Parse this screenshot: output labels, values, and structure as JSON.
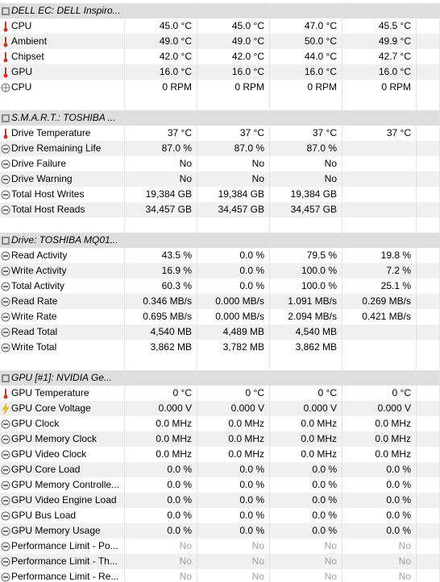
{
  "sections": [
    {
      "title": "DELL EC: DELL Inspiro...",
      "rows": [
        {
          "icon": "thermo",
          "label": "CPU",
          "values": [
            "45.0 °C",
            "45.0 °C",
            "47.0 °C",
            "45.5 °C"
          ]
        },
        {
          "icon": "thermo",
          "label": "Ambient",
          "values": [
            "49.0 °C",
            "49.0 °C",
            "50.0 °C",
            "49.9 °C"
          ]
        },
        {
          "icon": "thermo",
          "label": "Chipset",
          "values": [
            "42.0 °C",
            "42.0 °C",
            "44.0 °C",
            "42.7 °C"
          ]
        },
        {
          "icon": "thermo",
          "label": "GPU",
          "values": [
            "16.0 °C",
            "16.0 °C",
            "16.0 °C",
            "16.0 °C"
          ]
        },
        {
          "icon": "fan",
          "label": "CPU",
          "values": [
            "0 RPM",
            "0 RPM",
            "0 RPM",
            "0 RPM"
          ]
        }
      ]
    },
    {
      "title": "S.M.A.R.T.: TOSHIBA ...",
      "rows": [
        {
          "icon": "thermo",
          "label": "Drive Temperature",
          "values": [
            "37 °C",
            "37 °C",
            "37 °C",
            "37 °C"
          ]
        },
        {
          "icon": "circle",
          "label": "Drive Remaining Life",
          "values": [
            "87.0 %",
            "87.0 %",
            "87.0 %"
          ]
        },
        {
          "icon": "circle",
          "label": "Drive Failure",
          "values": [
            "No",
            "No",
            "No"
          ]
        },
        {
          "icon": "circle",
          "label": "Drive Warning",
          "values": [
            "No",
            "No",
            "No"
          ]
        },
        {
          "icon": "circle",
          "label": "Total Host Writes",
          "values": [
            "19,384 GB",
            "19,384 GB",
            "19,384 GB"
          ]
        },
        {
          "icon": "circle",
          "label": "Total Host Reads",
          "values": [
            "34,457 GB",
            "34,457 GB",
            "34,457 GB"
          ]
        }
      ]
    },
    {
      "title": "Drive: TOSHIBA MQ01...",
      "rows": [
        {
          "icon": "circle",
          "label": "Read Activity",
          "values": [
            "43.5 %",
            "0.0 %",
            "79.5 %",
            "19.8 %"
          ]
        },
        {
          "icon": "circle",
          "label": "Write Activity",
          "values": [
            "16.9 %",
            "0.0 %",
            "100.0 %",
            "7.2 %"
          ]
        },
        {
          "icon": "circle",
          "label": "Total Activity",
          "values": [
            "60.3 %",
            "0.0 %",
            "100.0 %",
            "25.1 %"
          ]
        },
        {
          "icon": "circle",
          "label": "Read Rate",
          "values": [
            "0.346 MB/s",
            "0.000 MB/s",
            "1.091 MB/s",
            "0.269 MB/s"
          ]
        },
        {
          "icon": "circle",
          "label": "Write Rate",
          "values": [
            "0.695 MB/s",
            "0.000 MB/s",
            "2.094 MB/s",
            "0.421 MB/s"
          ]
        },
        {
          "icon": "circle",
          "label": "Read Total",
          "values": [
            "4,540 MB",
            "4,489 MB",
            "4,540 MB"
          ]
        },
        {
          "icon": "circle",
          "label": "Write Total",
          "values": [
            "3,862 MB",
            "3,782 MB",
            "3,862 MB"
          ]
        }
      ]
    },
    {
      "title": "GPU [#1]: NVIDIA Ge...",
      "rows": [
        {
          "icon": "thermo",
          "label": "GPU Temperature",
          "values": [
            "0 °C",
            "0 °C",
            "0 °C",
            "0 °C"
          ]
        },
        {
          "icon": "bolt",
          "label": "GPU Core Voltage",
          "values": [
            "0.000 V",
            "0.000 V",
            "0.000 V",
            "0.000 V"
          ]
        },
        {
          "icon": "circle",
          "label": "GPU Clock",
          "values": [
            "0.0 MHz",
            "0.0 MHz",
            "0.0 MHz",
            "0.0 MHz"
          ]
        },
        {
          "icon": "circle",
          "label": "GPU Memory Clock",
          "values": [
            "0.0 MHz",
            "0.0 MHz",
            "0.0 MHz",
            "0.0 MHz"
          ]
        },
        {
          "icon": "circle",
          "label": "GPU Video Clock",
          "values": [
            "0.0 MHz",
            "0.0 MHz",
            "0.0 MHz",
            "0.0 MHz"
          ]
        },
        {
          "icon": "circle",
          "label": "GPU Core Load",
          "values": [
            "0.0 %",
            "0.0 %",
            "0.0 %",
            "0.0 %"
          ]
        },
        {
          "icon": "circle",
          "label": "GPU Memory Controlle...",
          "values": [
            "0.0 %",
            "0.0 %",
            "0.0 %",
            "0.0 %"
          ]
        },
        {
          "icon": "circle",
          "label": "GPU Video Engine Load",
          "values": [
            "0.0 %",
            "0.0 %",
            "0.0 %",
            "0.0 %"
          ]
        },
        {
          "icon": "circle",
          "label": "GPU Bus Load",
          "values": [
            "0.0 %",
            "0.0 %",
            "0.0 %",
            "0.0 %"
          ]
        },
        {
          "icon": "circle",
          "label": "GPU Memory Usage",
          "values": [
            "0.0 %",
            "0.0 %",
            "0.0 %",
            "0.0 %"
          ]
        },
        {
          "icon": "circle",
          "label": "Performance Limit - Po...",
          "dimmed": true,
          "values": [
            "No",
            "No",
            "No",
            "No"
          ]
        },
        {
          "icon": "circle",
          "label": "Performance Limit - Th...",
          "dimmed": true,
          "values": [
            "No",
            "No",
            "No",
            "No"
          ]
        },
        {
          "icon": "circle",
          "label": "Performance Limit - Re...",
          "dimmed": true,
          "values": [
            "No",
            "No",
            "No",
            "No"
          ]
        }
      ]
    }
  ]
}
